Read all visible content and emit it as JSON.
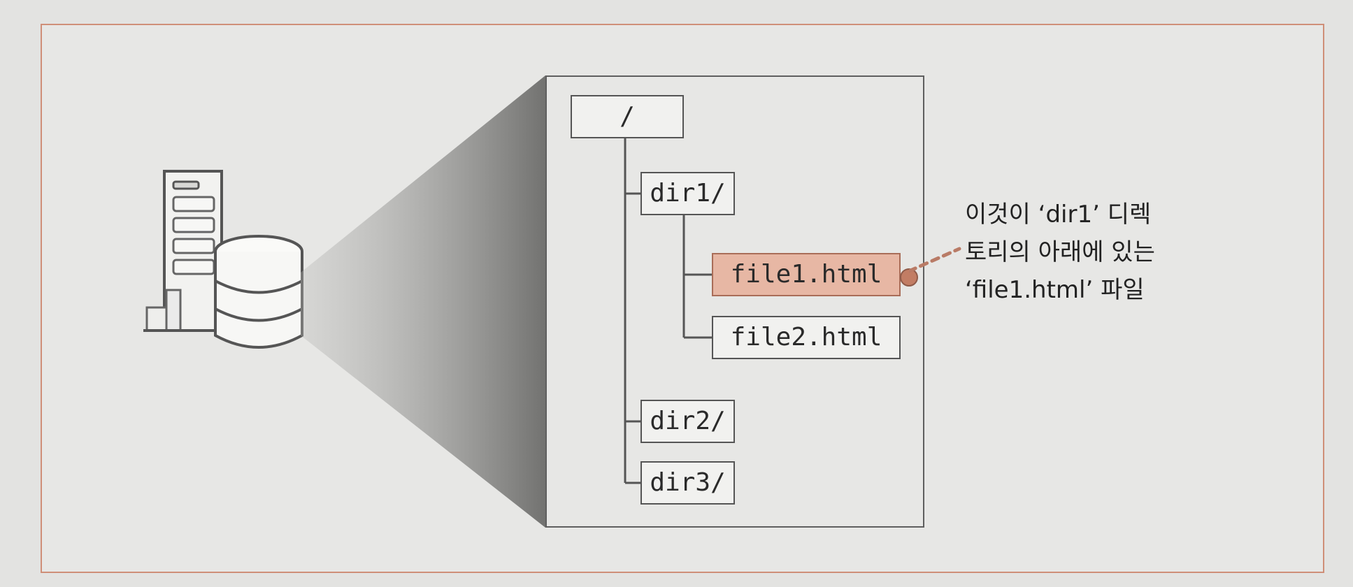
{
  "diagram": {
    "tree": {
      "root": "/",
      "dir1": "dir1/",
      "file1": "file1.html",
      "file2": "file2.html",
      "dir2": "dir2/",
      "dir3": "dir3/"
    },
    "callout": {
      "line1": "이것이 ‘dir1’ 디렉",
      "line2": "토리의 아래에 있는",
      "line3": "‘file1.html’ 파일"
    },
    "colors": {
      "highlight_fill": "#e7b7a4",
      "highlight_border": "#a96d58",
      "frame_border": "#cf8f78",
      "background": "#e3e3e1"
    },
    "icons": {
      "server": "server-database-icon"
    }
  }
}
